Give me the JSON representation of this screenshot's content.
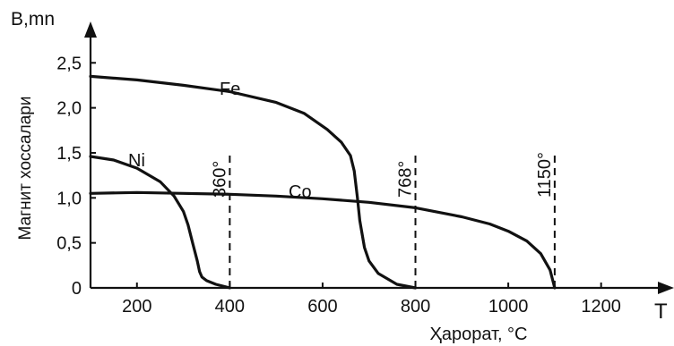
{
  "chart_data": {
    "type": "line",
    "ylabel": "Магнит хоссалари",
    "y_axis_symbol": "B,mn",
    "xlabel": "Ҳарорат, °C",
    "x_axis_symbol": "T",
    "xlim": [
      100,
      1330
    ],
    "ylim": [
      0,
      2.9
    ],
    "x_ticks": [
      {
        "value": 200,
        "label": "200"
      },
      {
        "value": 400,
        "label": "400"
      },
      {
        "value": 600,
        "label": "600"
      },
      {
        "value": 800,
        "label": "800"
      },
      {
        "value": 1000,
        "label": "1000"
      },
      {
        "value": 1200,
        "label": "1200"
      }
    ],
    "y_ticks": [
      {
        "value": 0,
        "label": "0"
      },
      {
        "value": 0.5,
        "label": "0,5"
      },
      {
        "value": 1.0,
        "label": "1,0"
      },
      {
        "value": 1.5,
        "label": "1,5"
      },
      {
        "value": 2.0,
        "label": "2,0"
      },
      {
        "value": 2.5,
        "label": "2,5"
      }
    ],
    "grid": false,
    "series": [
      {
        "name": "Fe",
        "x": [
          100,
          200,
          300,
          400,
          500,
          560,
          610,
          640,
          660,
          668,
          675,
          680,
          690,
          700,
          720,
          760,
          800
        ],
        "y": [
          2.35,
          2.31,
          2.25,
          2.18,
          2.06,
          1.94,
          1.76,
          1.62,
          1.47,
          1.3,
          1.0,
          0.75,
          0.45,
          0.3,
          0.16,
          0.04,
          0.0
        ]
      },
      {
        "name": "Ni",
        "x": [
          100,
          150,
          200,
          250,
          280,
          300,
          310,
          320,
          330,
          335,
          340,
          350,
          370,
          400
        ],
        "y": [
          1.46,
          1.42,
          1.33,
          1.18,
          1.02,
          0.85,
          0.7,
          0.5,
          0.3,
          0.18,
          0.12,
          0.08,
          0.04,
          0.0
        ]
      },
      {
        "name": "Co",
        "x": [
          100,
          200,
          300,
          400,
          500,
          600,
          700,
          800,
          900,
          960,
          1000,
          1040,
          1070,
          1090,
          1100
        ],
        "y": [
          1.05,
          1.06,
          1.05,
          1.04,
          1.02,
          0.99,
          0.95,
          0.89,
          0.79,
          0.71,
          0.63,
          0.52,
          0.38,
          0.2,
          0.0
        ]
      }
    ],
    "curie_points": [
      {
        "x": 400,
        "label": "360°"
      },
      {
        "x": 800,
        "label": "768°"
      },
      {
        "x": 1100,
        "label": "1150°"
      }
    ],
    "colors": {
      "line": "#111111",
      "background": "#ffffff"
    }
  }
}
